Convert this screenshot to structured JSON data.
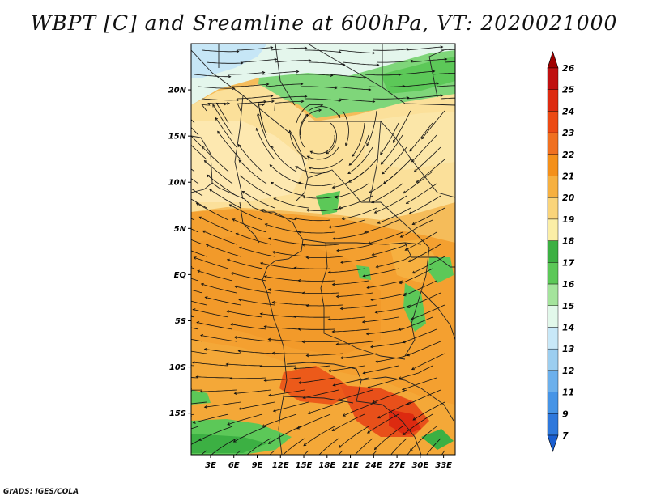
{
  "title": "WBPT [C] and Sreamline at 600hPa, VT: 2020021000",
  "credit": "GrADS: IGES/COLA",
  "map": {
    "lat_labels": [
      "20N",
      "15N",
      "10N",
      "5N",
      "EQ",
      "5S",
      "10S",
      "15S"
    ],
    "lat_values": [
      20,
      15,
      10,
      5,
      0,
      -5,
      -10,
      -15
    ],
    "lon_labels": [
      "3E",
      "6E",
      "9E",
      "12E",
      "15E",
      "18E",
      "21E",
      "24E",
      "27E",
      "30E",
      "33E"
    ],
    "lon_values": [
      3,
      6,
      9,
      12,
      15,
      18,
      21,
      24,
      27,
      30,
      33
    ],
    "lon_range": [
      0.5,
      34.5
    ],
    "lat_range": [
      -19.5,
      25
    ]
  },
  "colorbar": {
    "labels": [
      "26",
      "25",
      "24",
      "23",
      "22",
      "21",
      "20",
      "19",
      "18",
      "17",
      "16",
      "15",
      "14",
      "13",
      "12",
      "11",
      "9",
      "7"
    ],
    "colors": [
      "#a00000",
      "#c01010",
      "#dd2a10",
      "#ec4a14",
      "#f07020",
      "#f4901a",
      "#f6b040",
      "#fad47a",
      "#fbeea6",
      "#3cb043",
      "#5cc858",
      "#a4e49c",
      "#e2f8ea",
      "#c8e8f8",
      "#9ccef0",
      "#6cb0ec",
      "#4694e6",
      "#2e78dc",
      "#1a5ed0"
    ]
  }
}
